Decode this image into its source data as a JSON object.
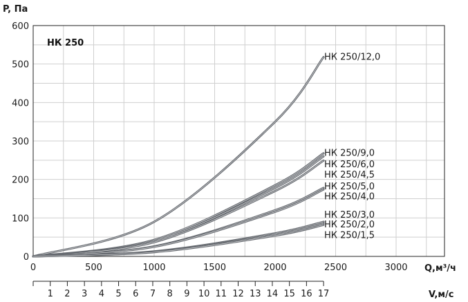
{
  "chart_data": {
    "type": "line",
    "title": "НК 250",
    "ylabel": "P, Па",
    "xlabel": "Q,м³/ч",
    "x2label": "V,м/с",
    "xlim": [
      0,
      3400
    ],
    "ylim": [
      0,
      600
    ],
    "x_ticks": [
      0,
      500,
      1000,
      1500,
      2000,
      2500,
      3000
    ],
    "y_ticks": [
      0,
      100,
      200,
      300,
      400,
      500,
      600
    ],
    "x2_ticks": [
      0,
      1,
      2,
      3,
      4,
      5,
      6,
      7,
      8,
      9,
      10,
      11,
      12,
      13,
      14,
      15,
      16,
      17
    ],
    "x2_per_unit": 141.2,
    "grid": true,
    "series": [
      {
        "name": "НК 250/12,0",
        "x": [
          0,
          1000,
          2000,
          2400
        ],
        "y": [
          0,
          90,
          350,
          518
        ]
      },
      {
        "name": "НК 250/9,0",
        "x": [
          0,
          1000,
          2000,
          2400
        ],
        "y": [
          0,
          43,
          185,
          268
        ]
      },
      {
        "name": "НК 250/6,0",
        "x": [
          0,
          1000,
          2000,
          2400
        ],
        "y": [
          0,
          40,
          178,
          260
        ]
      },
      {
        "name": "НК 250/4,5",
        "x": [
          0,
          1000,
          2000,
          2400
        ],
        "y": [
          0,
          37,
          170,
          249
        ]
      },
      {
        "name": "НК 250/5,0",
        "x": [
          0,
          1000,
          2000,
          2400
        ],
        "y": [
          0,
          26,
          120,
          178
        ]
      },
      {
        "name": "НК 250/4,0",
        "x": [
          0,
          1000,
          2000,
          2400
        ],
        "y": [
          0,
          25,
          116,
          174
        ]
      },
      {
        "name": "НК 250/3,0",
        "x": [
          0,
          1000,
          2000,
          2400
        ],
        "y": [
          0,
          13,
          60,
          90
        ]
      },
      {
        "name": "НК 250/2,0",
        "x": [
          0,
          1000,
          2000,
          2400
        ],
        "y": [
          0,
          12,
          57,
          86
        ]
      },
      {
        "name": "НК 250/1,5",
        "x": [
          0,
          1000,
          2000,
          2400
        ],
        "y": [
          0,
          11,
          54,
          82
        ]
      }
    ],
    "series_labels_y": [
      520,
      270,
      241,
      214,
      183,
      157,
      110,
      84,
      57
    ]
  }
}
